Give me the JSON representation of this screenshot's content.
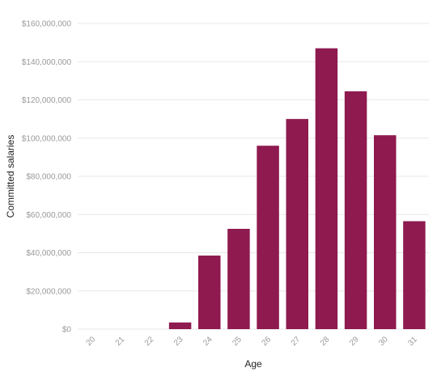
{
  "chart_data": {
    "type": "bar",
    "xlabel": "Age",
    "ylabel": "Committed salaries",
    "categories": [
      "20",
      "21",
      "22",
      "23",
      "24",
      "25",
      "26",
      "27",
      "28",
      "29",
      "30",
      "31"
    ],
    "values": [
      0,
      0,
      0,
      3500000,
      38500000,
      52500000,
      96000000,
      110000000,
      147000000,
      124500000,
      101500000,
      56500000
    ],
    "ylim": [
      0,
      160000000
    ],
    "yticks": [
      0,
      20000000,
      40000000,
      60000000,
      80000000,
      100000000,
      120000000,
      140000000,
      160000000
    ],
    "ytick_labels": [
      "$0",
      "$20,000,000",
      "$40,000,000",
      "$60,000,000",
      "$80,000,000",
      "$100,000,000",
      "$120,000,000",
      "$140,000,000",
      "$160,000,000"
    ],
    "grid": true,
    "bar_color": "#8e1a4f"
  }
}
